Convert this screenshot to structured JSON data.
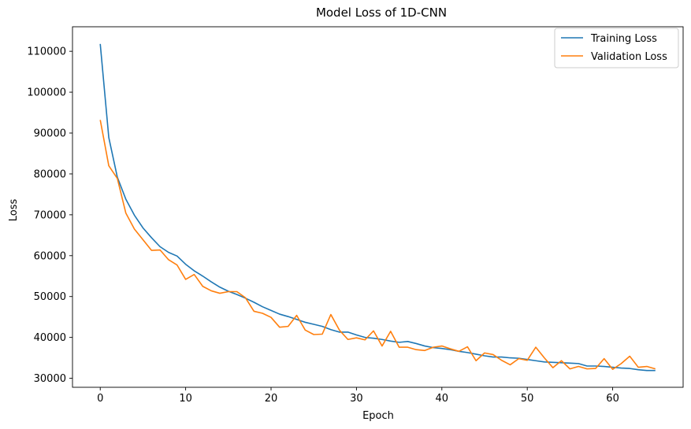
{
  "chart_data": {
    "type": "line",
    "title": "Model Loss of 1D-CNN",
    "xlabel": "Epoch",
    "ylabel": "Loss",
    "xlim": [
      -3.25,
      68.25
    ],
    "ylim": [
      27800,
      116000
    ],
    "x_ticks": [
      0,
      10,
      20,
      30,
      40,
      50,
      60
    ],
    "y_ticks": [
      30000,
      40000,
      50000,
      60000,
      70000,
      80000,
      90000,
      100000,
      110000
    ],
    "grid": false,
    "legend": "top-right",
    "x": [
      0,
      1,
      2,
      3,
      4,
      5,
      6,
      7,
      8,
      9,
      10,
      11,
      12,
      13,
      14,
      15,
      16,
      17,
      18,
      19,
      20,
      21,
      22,
      23,
      24,
      25,
      26,
      27,
      28,
      29,
      30,
      31,
      32,
      33,
      34,
      35,
      36,
      37,
      38,
      39,
      40,
      41,
      42,
      43,
      44,
      45,
      46,
      47,
      48,
      49,
      50,
      51,
      52,
      53,
      54,
      55,
      56,
      57,
      58,
      59,
      60,
      61,
      62,
      63,
      64,
      65
    ],
    "series": [
      {
        "name": "Training Loss",
        "color": "#1f77b4",
        "values": [
          111800,
          88900,
          79200,
          73800,
          69900,
          66800,
          64400,
          62200,
          60800,
          59900,
          57900,
          56300,
          55000,
          53600,
          52300,
          51300,
          50500,
          49600,
          48600,
          47500,
          46600,
          45700,
          45100,
          44400,
          43700,
          43200,
          42700,
          41900,
          41300,
          41300,
          40600,
          40000,
          39800,
          39500,
          39100,
          38800,
          39000,
          38500,
          37900,
          37500,
          37300,
          37000,
          36600,
          36300,
          35900,
          35500,
          35200,
          35200,
          35000,
          34900,
          34600,
          34300,
          34000,
          33900,
          33800,
          33700,
          33600,
          33000,
          33000,
          32900,
          32700,
          32500,
          32400,
          32100,
          31900,
          31900
        ]
      },
      {
        "name": "Validation Loss",
        "color": "#ff7f0e",
        "values": [
          93200,
          82000,
          78900,
          70400,
          66500,
          63900,
          61300,
          61400,
          59000,
          57700,
          54200,
          55400,
          52500,
          51400,
          50800,
          51200,
          51200,
          49700,
          46400,
          45900,
          44900,
          42500,
          42700,
          45400,
          41800,
          40700,
          40800,
          45600,
          41800,
          39500,
          39900,
          39400,
          41600,
          37900,
          41500,
          37600,
          37600,
          37000,
          36800,
          37600,
          37900,
          37200,
          36600,
          37700,
          34300,
          36200,
          35800,
          34400,
          33300,
          34800,
          34400,
          37600,
          35000,
          32600,
          34300,
          32300,
          32900,
          32300,
          32400,
          34800,
          32200,
          33600,
          35400,
          32700,
          32900,
          32300
        ]
      }
    ]
  }
}
